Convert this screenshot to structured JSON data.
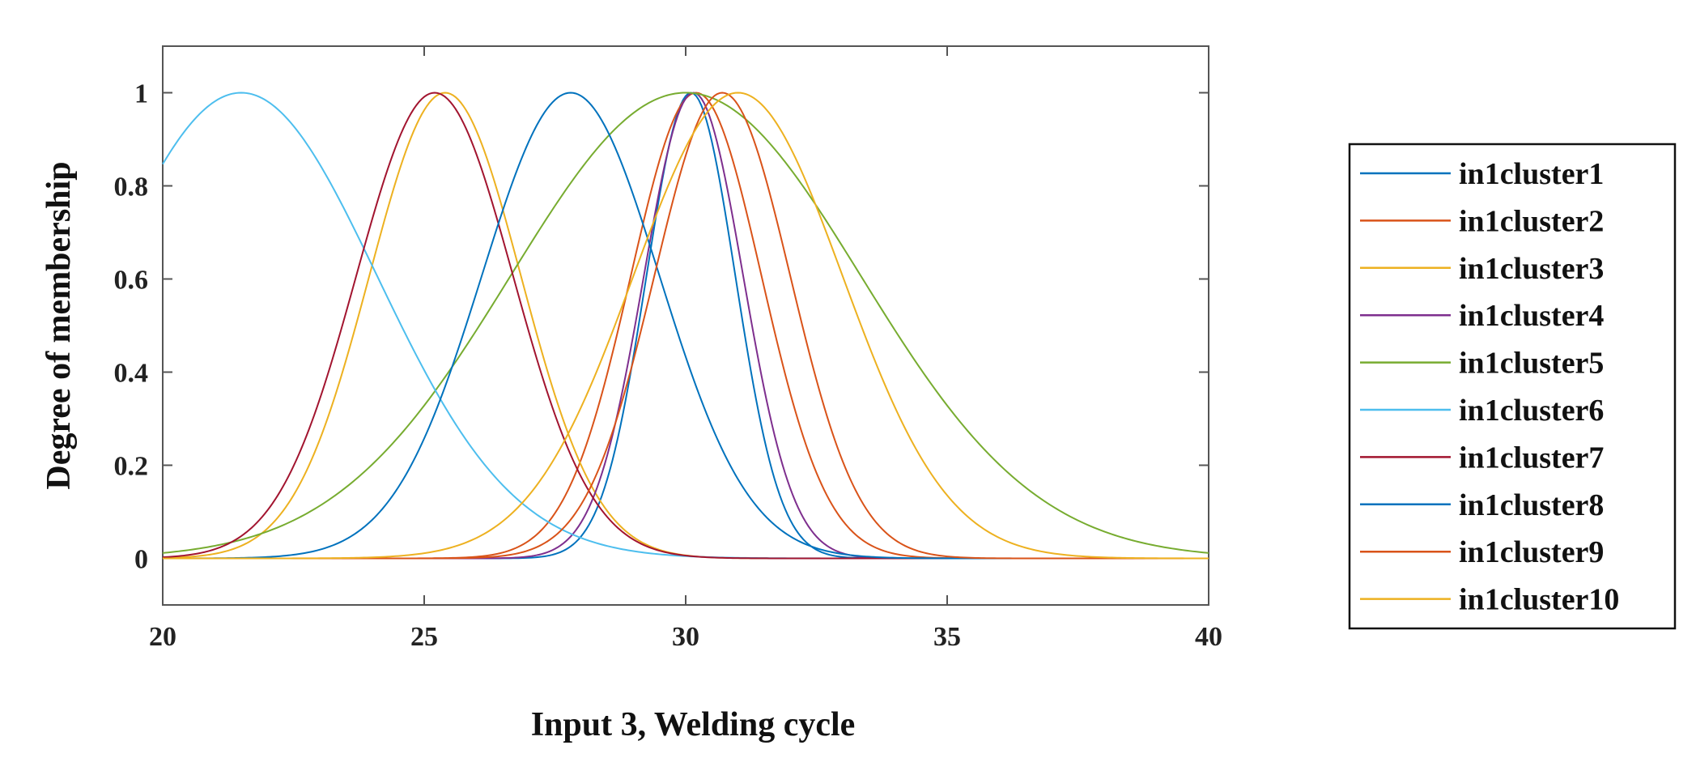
{
  "chart_data": {
    "type": "line",
    "title": "",
    "xlabel": "Input 3, Welding cycle",
    "ylabel": "Degree of membership",
    "xlim": [
      20,
      40
    ],
    "ylim": [
      -0.1,
      1.1
    ],
    "xticks": [
      20,
      25,
      30,
      35,
      40
    ],
    "yticks": [
      0,
      0.2,
      0.4,
      0.6,
      0.8,
      1
    ],
    "xtick_labels": [
      "20",
      "25",
      "30",
      "35",
      "40"
    ],
    "ytick_labels": [
      "0",
      "0.2",
      "0.4",
      "0.6",
      "0.8",
      "1"
    ],
    "grid": false,
    "legend_position": "right",
    "function": "gaussian",
    "series": [
      {
        "name": "in1cluster1",
        "color": "#0072BD",
        "center": 30.1,
        "sigma": 0.85
      },
      {
        "name": "in1cluster2",
        "color": "#D95319",
        "center": 30.2,
        "sigma": 1.25
      },
      {
        "name": "in1cluster3",
        "color": "#EDB120",
        "center": 25.4,
        "sigma": 1.45
      },
      {
        "name": "in1cluster4",
        "color": "#7E2F8E",
        "center": 30.15,
        "sigma": 0.95
      },
      {
        "name": "in1cluster5",
        "color": "#77AC30",
        "center": 30.0,
        "sigma": 3.35
      },
      {
        "name": "in1cluster6",
        "color": "#4DBEEE",
        "center": 21.5,
        "sigma": 2.6
      },
      {
        "name": "in1cluster7",
        "color": "#A2142F",
        "center": 25.2,
        "sigma": 1.5
      },
      {
        "name": "in1cluster8",
        "color": "#0072BD",
        "center": 27.8,
        "sigma": 1.7
      },
      {
        "name": "in1cluster9",
        "color": "#D95319",
        "center": 30.7,
        "sigma": 1.3
      },
      {
        "name": "in1cluster10",
        "color": "#EDB120",
        "center": 31.0,
        "sigma": 2.0
      }
    ]
  }
}
